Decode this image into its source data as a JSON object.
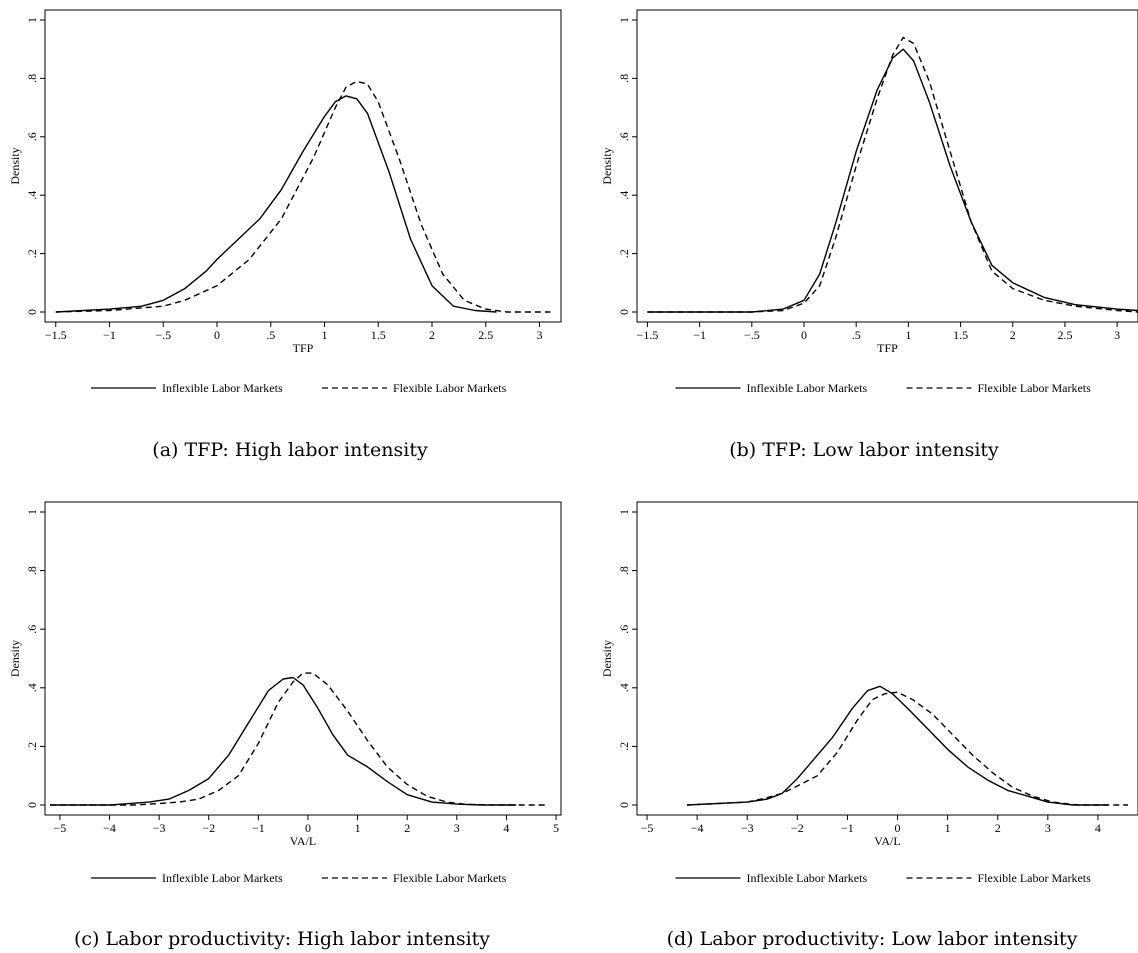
{
  "chart_data": [
    {
      "type": "line",
      "caption": "(a) TFP: High labor intensity",
      "xlabel": "TFP",
      "ylabel": "Density",
      "xlim": [
        -1.6,
        3.2
      ],
      "ylim": [
        0,
        1
      ],
      "x_ticks": [
        -1.5,
        -1,
        -0.5,
        0,
        0.5,
        1,
        1.5,
        2,
        2.5,
        3
      ],
      "x_tick_labels": [
        "−1.5",
        "−1",
        "−.5",
        "0",
        ".5",
        "1",
        "1.5",
        "2",
        "2.5",
        "3"
      ],
      "y_ticks": [
        0,
        0.2,
        0.4,
        0.6,
        0.8,
        1
      ],
      "y_tick_labels": [
        "0",
        ".2",
        ".4",
        ".6",
        ".8",
        "1"
      ],
      "legend_position": "bottom",
      "grid": false,
      "series": [
        {
          "name": "Inflexible Labor Markets",
          "style": "solid",
          "x": [
            -1.5,
            -1.0,
            -0.7,
            -0.5,
            -0.3,
            -0.1,
            0.0,
            0.2,
            0.4,
            0.6,
            0.8,
            1.0,
            1.1,
            1.2,
            1.3,
            1.4,
            1.6,
            1.8,
            2.0,
            2.2,
            2.4,
            2.6
          ],
          "y": [
            0.0,
            0.01,
            0.02,
            0.04,
            0.08,
            0.14,
            0.18,
            0.25,
            0.32,
            0.42,
            0.55,
            0.67,
            0.72,
            0.74,
            0.73,
            0.68,
            0.48,
            0.25,
            0.09,
            0.02,
            0.005,
            0.0
          ]
        },
        {
          "name": "Flexible Labor Markets",
          "style": "dashed",
          "x": [
            -1.5,
            -1.0,
            -0.5,
            -0.3,
            0.0,
            0.3,
            0.6,
            0.9,
            1.1,
            1.2,
            1.3,
            1.4,
            1.5,
            1.7,
            1.9,
            2.1,
            2.3,
            2.5,
            2.7,
            3.1
          ],
          "y": [
            0.0,
            0.005,
            0.02,
            0.04,
            0.09,
            0.18,
            0.32,
            0.53,
            0.7,
            0.77,
            0.79,
            0.78,
            0.72,
            0.52,
            0.3,
            0.13,
            0.04,
            0.01,
            0.0,
            0.0
          ]
        }
      ]
    },
    {
      "type": "line",
      "caption": "(b) TFP: Low labor intensity",
      "xlabel": "TFP",
      "ylabel": "Density",
      "xlim": [
        -1.6,
        3.2
      ],
      "ylim": [
        0,
        1
      ],
      "x_ticks": [
        -1.5,
        -1,
        -0.5,
        0,
        0.5,
        1,
        1.5,
        2,
        2.5,
        3
      ],
      "x_tick_labels": [
        "−1.5",
        "−1",
        "−.5",
        "0",
        ".5",
        "1",
        "1.5",
        "2",
        "2.5",
        "3"
      ],
      "y_ticks": [
        0,
        0.2,
        0.4,
        0.6,
        0.8,
        1
      ],
      "y_tick_labels": [
        "0",
        ".2",
        ".4",
        ".6",
        ".8",
        "1"
      ],
      "legend_position": "bottom",
      "grid": false,
      "series": [
        {
          "name": "Inflexible Labor Markets",
          "style": "solid",
          "x": [
            -1.5,
            -0.5,
            -0.2,
            0.0,
            0.15,
            0.3,
            0.5,
            0.7,
            0.85,
            0.95,
            1.05,
            1.2,
            1.4,
            1.6,
            1.8,
            2.0,
            2.3,
            2.6,
            3.0,
            3.2
          ],
          "y": [
            0.0,
            0.0,
            0.01,
            0.04,
            0.13,
            0.3,
            0.55,
            0.76,
            0.87,
            0.9,
            0.86,
            0.72,
            0.5,
            0.31,
            0.16,
            0.1,
            0.05,
            0.025,
            0.01,
            0.005
          ]
        },
        {
          "name": "Flexible Labor Markets",
          "style": "dashed",
          "x": [
            -1.5,
            -0.5,
            -0.2,
            0.0,
            0.15,
            0.3,
            0.5,
            0.7,
            0.85,
            0.95,
            1.05,
            1.2,
            1.4,
            1.6,
            1.8,
            2.0,
            2.3,
            2.6,
            3.0,
            3.2
          ],
          "y": [
            0.0,
            0.0,
            0.005,
            0.03,
            0.09,
            0.25,
            0.5,
            0.73,
            0.88,
            0.94,
            0.92,
            0.79,
            0.55,
            0.31,
            0.14,
            0.08,
            0.04,
            0.02,
            0.005,
            0.0
          ]
        }
      ]
    },
    {
      "type": "line",
      "caption": "(c) Labor productivity: High labor intensity",
      "xlabel": "VA/L",
      "ylabel": "Density",
      "xlim": [
        -5.3,
        5.1
      ],
      "ylim": [
        0,
        1
      ],
      "x_ticks": [
        -5,
        -4,
        -3,
        -2,
        -1,
        0,
        1,
        2,
        3,
        4,
        5
      ],
      "x_tick_labels": [
        "−5",
        "−4",
        "−3",
        "−2",
        "−1",
        "0",
        "1",
        "2",
        "3",
        "4",
        "5"
      ],
      "y_ticks": [
        0,
        0.2,
        0.4,
        0.6,
        0.8,
        1
      ],
      "y_tick_labels": [
        "0",
        ".2",
        ".4",
        ".6",
        ".8",
        "1"
      ],
      "legend_position": "bottom",
      "grid": false,
      "series": [
        {
          "name": "Inflexible Labor Markets",
          "style": "solid",
          "x": [
            -5.2,
            -4.0,
            -3.2,
            -2.8,
            -2.4,
            -2.0,
            -1.6,
            -1.2,
            -0.8,
            -0.5,
            -0.3,
            -0.1,
            0.2,
            0.5,
            0.8,
            1.2,
            1.6,
            2.0,
            2.5,
            3.0,
            3.5,
            4.2
          ],
          "y": [
            0.0,
            0.0,
            0.01,
            0.02,
            0.05,
            0.09,
            0.17,
            0.28,
            0.39,
            0.43,
            0.435,
            0.41,
            0.33,
            0.24,
            0.17,
            0.13,
            0.08,
            0.035,
            0.01,
            0.003,
            0.0,
            0.0
          ]
        },
        {
          "name": "Flexible Labor Markets",
          "style": "dashed",
          "x": [
            -5.2,
            -3.5,
            -3.0,
            -2.6,
            -2.2,
            -1.8,
            -1.4,
            -1.0,
            -0.6,
            -0.3,
            -0.1,
            0.1,
            0.4,
            0.8,
            1.2,
            1.6,
            2.0,
            2.4,
            2.8,
            3.2,
            3.8,
            4.8
          ],
          "y": [
            0.0,
            0.0,
            0.005,
            0.01,
            0.02,
            0.05,
            0.1,
            0.21,
            0.35,
            0.42,
            0.45,
            0.45,
            0.41,
            0.32,
            0.22,
            0.13,
            0.07,
            0.03,
            0.01,
            0.002,
            0.0,
            0.0
          ]
        }
      ]
    },
    {
      "type": "line",
      "caption": "(d) Labor productivity: Low labor intensity",
      "xlabel": "VA/L",
      "ylabel": "Density",
      "xlim": [
        -5.2,
        4.8
      ],
      "ylim": [
        0,
        1
      ],
      "x_ticks": [
        -5,
        -4,
        -3,
        -2,
        -1,
        0,
        1,
        2,
        3,
        4,
        5
      ],
      "x_tick_labels": [
        "−5",
        "−4",
        "−3",
        "−2",
        "−1",
        "0",
        "1",
        "2",
        "3",
        "4",
        "5"
      ],
      "y_ticks": [
        0,
        0.2,
        0.4,
        0.6,
        0.8,
        1
      ],
      "y_tick_labels": [
        "0",
        ".2",
        ".4",
        ".6",
        ".8",
        "1"
      ],
      "legend_position": "bottom",
      "grid": false,
      "series": [
        {
          "name": "Inflexible Labor Markets",
          "style": "solid",
          "x": [
            -4.2,
            -3.0,
            -2.6,
            -2.3,
            -2.0,
            -1.7,
            -1.3,
            -0.9,
            -0.6,
            -0.35,
            -0.1,
            0.2,
            0.6,
            1.0,
            1.4,
            1.8,
            2.2,
            2.6,
            3.0,
            3.5,
            4.2
          ],
          "y": [
            0.0,
            0.01,
            0.02,
            0.04,
            0.09,
            0.15,
            0.23,
            0.33,
            0.39,
            0.405,
            0.38,
            0.33,
            0.26,
            0.19,
            0.13,
            0.085,
            0.05,
            0.03,
            0.01,
            0.0,
            0.0
          ]
        },
        {
          "name": "Flexible Labor Markets",
          "style": "dashed",
          "x": [
            -4.2,
            -3.0,
            -2.6,
            -2.3,
            -2.0,
            -1.6,
            -1.2,
            -0.8,
            -0.5,
            -0.25,
            0.0,
            0.3,
            0.7,
            1.1,
            1.5,
            1.9,
            2.3,
            2.7,
            3.1,
            3.6,
            4.6
          ],
          "y": [
            0.0,
            0.01,
            0.025,
            0.04,
            0.065,
            0.1,
            0.18,
            0.29,
            0.36,
            0.38,
            0.385,
            0.36,
            0.31,
            0.24,
            0.17,
            0.11,
            0.06,
            0.03,
            0.01,
            0.0,
            0.0
          ]
        }
      ]
    }
  ]
}
